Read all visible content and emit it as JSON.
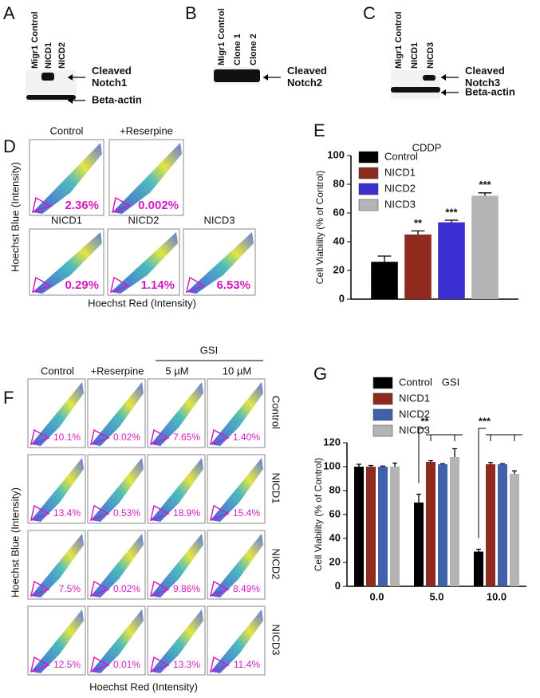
{
  "panel_letters": [
    "A",
    "B",
    "C",
    "D",
    "E",
    "F",
    "G"
  ],
  "blot_a": {
    "lanes": [
      "Migr1 Control",
      "NICD1",
      "NICD2"
    ],
    "labels": [
      [
        "Cleaved",
        "Notch1"
      ],
      [
        "Beta-actin"
      ]
    ]
  },
  "blot_b": {
    "lanes": [
      "Migr1 Control",
      "Clone 1",
      "Clone 2"
    ],
    "labels": [
      [
        "Cleaved",
        "Notch2"
      ]
    ]
  },
  "blot_c": {
    "lanes": [
      "Migr1 Control",
      "NICD1",
      "NICD3"
    ],
    "labels": [
      [
        "Cleaved",
        "Notch3"
      ],
      [
        "Beta-actin"
      ]
    ]
  },
  "flow_d": {
    "plots": [
      {
        "title": "Control",
        "percent": "2.36%"
      },
      {
        "title": "+Reserpine",
        "percent": "0.002%"
      },
      {
        "title": "NICD1",
        "percent": "0.29%"
      },
      {
        "title": "NICD2",
        "percent": "1.14%"
      },
      {
        "title": "NICD3",
        "percent": "6.53%"
      }
    ],
    "y_label": "Hoechst Blue (Intensity)",
    "x_label": "Hoechst Red (Intensity)"
  },
  "flow_f": {
    "columns": [
      "Control",
      "+Reserpine",
      "5 µM",
      "10 µM"
    ],
    "group_label": "GSI",
    "rows": [
      "Control",
      "NICD1",
      "NICD2",
      "NICD3"
    ],
    "percents": [
      [
        "10.1%",
        "0.02%",
        "7.65%",
        "1.40%"
      ],
      [
        "13.4%",
        "0.53%",
        "18.9%",
        "15.4%"
      ],
      [
        "7.5%",
        "0.02%",
        "9.86%",
        "8.49%"
      ],
      [
        "12.5%",
        "0.01%",
        "13.3%",
        "11.4%"
      ]
    ],
    "y_label": "Hoechst Blue (Intensity)",
    "x_label": "Hoechst Red (Intensity)"
  },
  "chart_data": [
    {
      "type": "bar",
      "title": "CDDP",
      "y_label": "Cell Viability (% of Control)",
      "categories": [
        null
      ],
      "series": [
        {
          "name": "Control",
          "color": "#000000",
          "values": [
            26
          ],
          "errors": [
            4
          ],
          "annotations": [
            null
          ]
        },
        {
          "name": "NICD1",
          "color": "#8e2a1e",
          "values": [
            45
          ],
          "errors": [
            2.5
          ],
          "annotations": [
            "**"
          ]
        },
        {
          "name": "NICD2",
          "color": "#3a2fd0",
          "values": [
            53.5
          ],
          "errors": [
            1.5
          ],
          "annotations": [
            "***"
          ]
        },
        {
          "name": "NICD3",
          "color": "#b4b4b4",
          "values": [
            72
          ],
          "errors": [
            2
          ],
          "annotations": [
            "***"
          ]
        }
      ],
      "ylim": [
        0,
        100
      ],
      "yticks": [
        0,
        20,
        40,
        60,
        80,
        100
      ]
    },
    {
      "type": "bar",
      "title": "GSI",
      "y_label": "Cell Viability (% of Control)",
      "categories": [
        "0.0",
        "5.0",
        "10.0"
      ],
      "annotations": [
        null,
        "**",
        "***"
      ],
      "series": [
        {
          "name": "Control",
          "color": "#000000",
          "values": [
            100,
            70,
            29
          ],
          "errors": [
            2,
            7,
            2
          ]
        },
        {
          "name": "NICD1",
          "color": "#8e2a1e",
          "values": [
            100,
            104,
            102
          ],
          "errors": [
            1,
            1,
            1.5
          ]
        },
        {
          "name": "NICD2",
          "color": "#3f62aa",
          "values": [
            100,
            102,
            102
          ],
          "errors": [
            0.5,
            0.5,
            0.5
          ]
        },
        {
          "name": "NICD3",
          "color": "#b4b4b4",
          "values": [
            100,
            108,
            94
          ],
          "errors": [
            3,
            7,
            2.5
          ]
        }
      ],
      "ylim": [
        0,
        120
      ],
      "yticks": [
        0,
        20,
        40,
        60,
        80,
        100,
        120
      ]
    }
  ]
}
